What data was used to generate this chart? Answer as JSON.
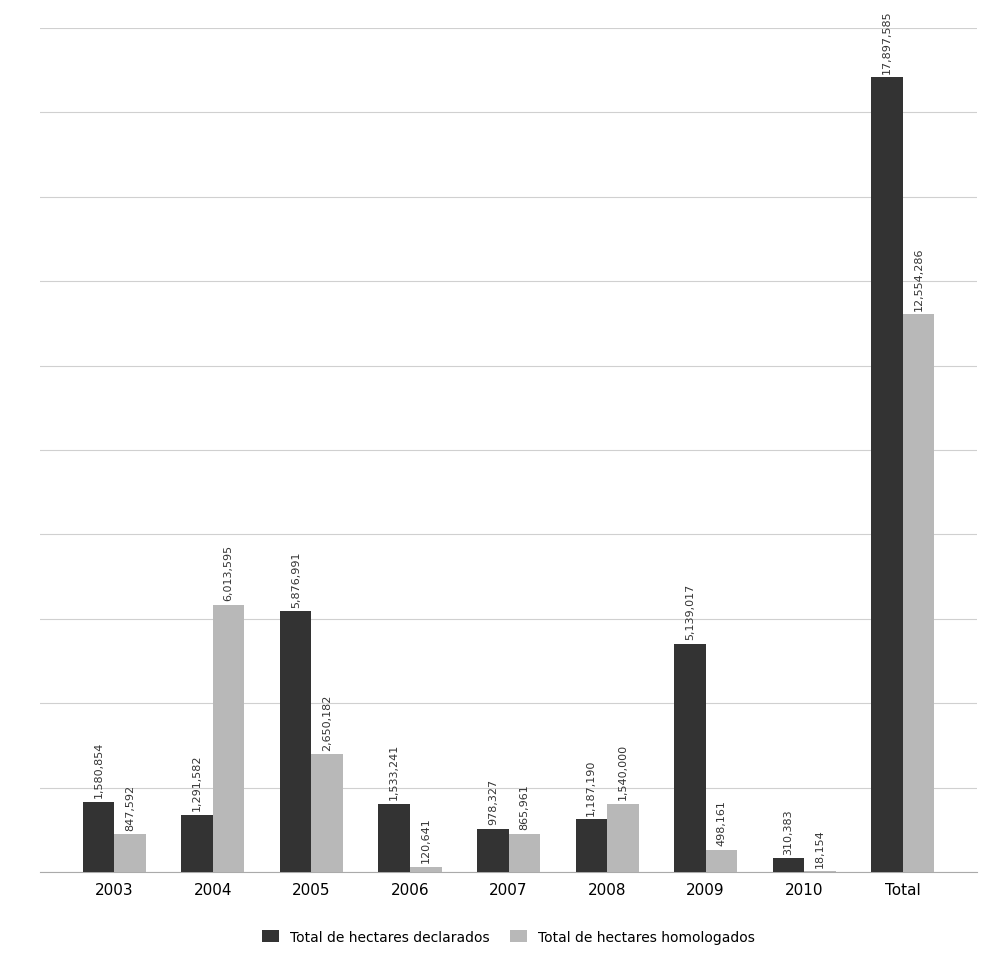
{
  "categories": [
    "2003",
    "2004",
    "2005",
    "2006",
    "2007",
    "2008",
    "2009",
    "2010",
    "Total"
  ],
  "declarados": [
    1580854,
    1291582,
    5876991,
    1533241,
    978327,
    1187190,
    5139017,
    310383,
    17897585
  ],
  "homologados": [
    847592,
    6013595,
    2650182,
    120641,
    865961,
    1540000,
    498161,
    18154,
    12554286
  ],
  "declarados_labels": [
    "1,580,854",
    "1,291,582",
    "5,876,991",
    "1,533,241",
    "978,327",
    "1,187,190",
    "5,139,017",
    "310,383",
    "17,897,585"
  ],
  "homologados_labels": [
    "847,592",
    "6,013,595",
    "2,650,182",
    "120,641",
    "865,961",
    "1,540,000",
    "498,161",
    "18,154",
    "12,554,286"
  ],
  "color_declarados": "#333333",
  "color_homologados": "#b8b8b8",
  "legend_declarados": "Total de hectares declarados",
  "legend_homologados": "Total de hectares homologados",
  "bar_width": 0.32,
  "background_color": "#ffffff",
  "grid_color": "#d0d0d0",
  "ylim_max": 19000000,
  "yticks": [
    0,
    1900000,
    3800000,
    5700000,
    7600000,
    9500000,
    11400000,
    13300000,
    15200000,
    17100000,
    19000000
  ],
  "label_fontsize": 8.0,
  "tick_fontsize": 11,
  "legend_fontsize": 10
}
